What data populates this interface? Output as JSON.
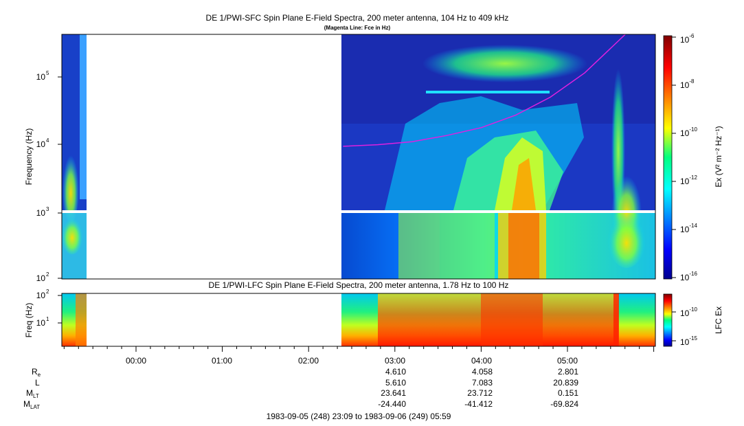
{
  "top_panel": {
    "title": "DE 1/PWI-SFC  Spin Plane E-Field Spectra, 200 meter antenna, 104 Hz to 409 kHz",
    "subtitle": "(Magenta Line: Fce in Hz)",
    "ylabel": "Frequency (Hz)",
    "yticks": [
      "10",
      "10",
      "10",
      "10"
    ],
    "ytick_exps": [
      "2",
      "3",
      "4",
      "5"
    ],
    "colorbar_label": "Ex (V² m⁻² Hz⁻¹)",
    "colorbar_ticks": [
      "10",
      "10",
      "10",
      "10",
      "10",
      "10"
    ],
    "colorbar_exps": [
      "-6",
      "-8",
      "-10",
      "-12",
      "-14",
      "-16"
    ]
  },
  "bottom_panel": {
    "title": "DE 1/PWI-LFC  Spin Plane E-Field Spectra, 200 meter antenna, 1.78 Hz to 100 Hz",
    "ylabel": "Freq (Hz)",
    "yticks": [
      "10",
      "10"
    ],
    "ytick_exps": [
      "2",
      "1"
    ],
    "colorbar_label": "LFC Ex",
    "colorbar_ticks": [
      "10",
      "10"
    ],
    "colorbar_exps": [
      "-10",
      "-15"
    ]
  },
  "x_axis": {
    "time_labels": [
      "00:00",
      "01:00",
      "02:00",
      "03:00",
      "04:00",
      "05:00"
    ]
  },
  "ephemeris": {
    "rows": [
      {
        "label": "R",
        "sub": "e",
        "values": [
          "",
          "",
          "",
          "4.610",
          "4.058",
          "2.801"
        ]
      },
      {
        "label": "L",
        "sub": "",
        "values": [
          "",
          "",
          "",
          "5.610",
          "7.083",
          "20.839"
        ]
      },
      {
        "label": "M",
        "sub": "LT",
        "values": [
          "",
          "",
          "",
          "23.641",
          "23.712",
          "0.151"
        ]
      },
      {
        "label": "M",
        "sub": "LAT",
        "values": [
          "",
          "",
          "",
          "-24.440",
          "-41.412",
          "-69.824"
        ]
      }
    ],
    "footer": "1983-09-05 (248) 23:09 to 1983-09-06 (249) 05:59"
  },
  "colors": {
    "fce_line": "#e020e0",
    "background": "#1828a8"
  },
  "chart_data": [
    {
      "type": "heatmap",
      "title": "DE 1/PWI-SFC  Spin Plane E-Field Spectra, 200 meter antenna, 104 Hz to 409 kHz",
      "ylabel": "Frequency (Hz)",
      "yscale": "log",
      "ylim": [
        100,
        409000
      ],
      "x_range": [
        "1983-09-05 23:09",
        "1983-09-06 05:59"
      ],
      "data_gaps_utc": [
        [
          "23:25",
          "02:22"
        ]
      ],
      "colorbar": {
        "label": "Ex (V² m⁻² Hz⁻¹)",
        "scale": "log",
        "range": [
          1e-16,
          1e-06
        ]
      },
      "fce_line": {
        "name": "Fce in Hz",
        "time_hours": [
          2.4,
          2.8,
          3.2,
          3.6,
          4.0,
          4.4,
          4.8,
          5.2,
          5.67
        ],
        "freq_hz": [
          9000,
          9500,
          10500,
          13000,
          17000,
          26000,
          48000,
          110000,
          409000
        ]
      }
    },
    {
      "type": "heatmap",
      "title": "DE 1/PWI-LFC  Spin Plane E-Field Spectra, 200 meter antenna, 1.78 Hz to 100 Hz",
      "ylabel": "Freq (Hz)",
      "yscale": "log",
      "ylim": [
        1.78,
        100
      ],
      "colorbar": {
        "label": "LFC Ex",
        "scale": "log",
        "range": [
          1e-17,
          1e-08
        ]
      }
    }
  ]
}
